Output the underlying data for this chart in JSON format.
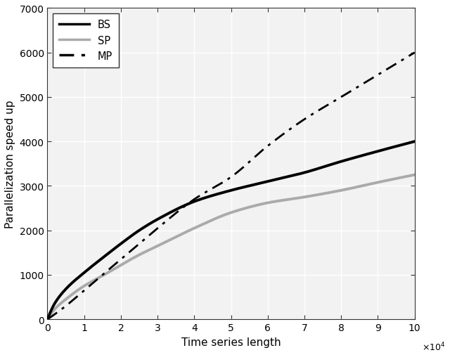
{
  "title": "",
  "xlabel": "Time series length",
  "ylabel": "Parallelization speed up",
  "xlim": [
    0,
    100000
  ],
  "ylim": [
    0,
    7000
  ],
  "xticks": [
    0,
    10000,
    20000,
    30000,
    40000,
    50000,
    60000,
    70000,
    80000,
    90000,
    100000
  ],
  "yticks": [
    0,
    1000,
    2000,
    3000,
    4000,
    5000,
    6000,
    7000
  ],
  "xtick_labels": [
    "0",
    "1",
    "2",
    "3",
    "4",
    "5",
    "6",
    "7",
    "8",
    "9",
    "10"
  ],
  "bg_color": "#f2f2f2",
  "grid_color": "#ffffff",
  "bs_color": "#000000",
  "sp_color": "#aaaaaa",
  "mp_color": "#000000",
  "bs_lw": 2.8,
  "sp_lw": 2.8,
  "mp_lw": 2.0,
  "legend_labels": [
    "BS",
    "SP",
    "MP"
  ],
  "legend_loc": "upper left",
  "bs_points_x": [
    0,
    2000,
    5000,
    10000,
    15000,
    20000,
    25000,
    30000,
    40000,
    50000,
    60000,
    70000,
    80000,
    90000,
    100000
  ],
  "bs_points_y": [
    0,
    360,
    680,
    1050,
    1380,
    1700,
    2000,
    2250,
    2650,
    2900,
    3100,
    3300,
    3550,
    3780,
    4000
  ],
  "sp_points_x": [
    0,
    2000,
    5000,
    10000,
    15000,
    20000,
    25000,
    30000,
    40000,
    50000,
    60000,
    70000,
    80000,
    90000,
    100000
  ],
  "sp_points_y": [
    0,
    230,
    450,
    750,
    980,
    1220,
    1450,
    1650,
    2050,
    2400,
    2620,
    2750,
    2900,
    3080,
    3250
  ],
  "mp_points_x": [
    0,
    5000,
    10000,
    15000,
    20000,
    25000,
    30000,
    40000,
    50000,
    60000,
    70000,
    80000,
    90000,
    100000
  ],
  "mp_points_y": [
    0,
    300,
    650,
    1000,
    1350,
    1700,
    2050,
    2700,
    3200,
    3900,
    4500,
    5000,
    5500,
    6000
  ]
}
